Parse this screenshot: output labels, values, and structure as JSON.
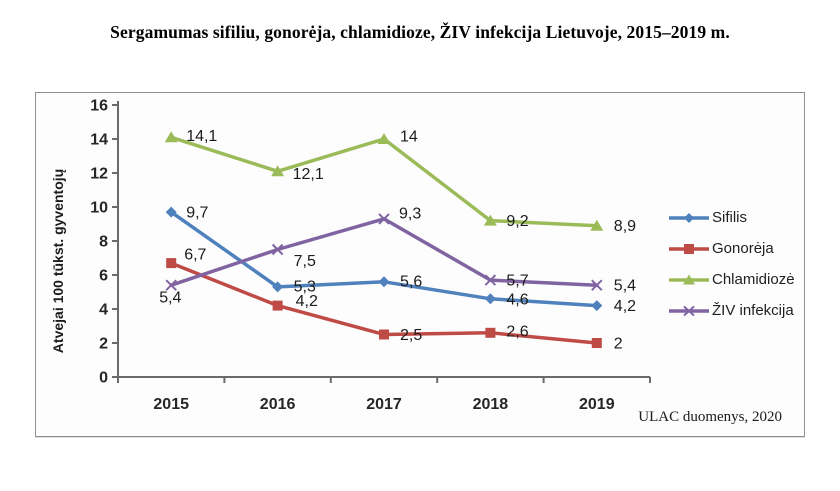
{
  "page": {
    "title": "Sergamumas sifiliu, gonorėja, chlamidioze, ŽIV infekcija Lietuvoje, 2015–2019 m."
  },
  "chart_data": {
    "type": "line",
    "title": "Sergamumas sifiliu, gonorėja, chlamidioze, ŽIV infekcija Lietuvoje, 2015–2019 m.",
    "xlabel": "",
    "ylabel": "Atvejai 100 tūkst. gyventojų",
    "categories": [
      "2015",
      "2016",
      "2017",
      "2018",
      "2019"
    ],
    "ylim": [
      0,
      16
    ],
    "yticks": [
      0,
      2,
      4,
      6,
      8,
      10,
      12,
      14,
      16
    ],
    "grid": false,
    "legend_position": "right",
    "decimal_separator": ",",
    "series": [
      {
        "name": "Sifilis",
        "color": "#4F81BD",
        "marker": "diamond",
        "values": [
          9.7,
          5.3,
          5.6,
          4.6,
          4.2
        ],
        "point_labels": [
          "9,7",
          "5,3",
          "5,6",
          "4,6",
          "4,2"
        ]
      },
      {
        "name": "Gonorėja",
        "color": "#BF4B47",
        "marker": "square",
        "values": [
          6.7,
          4.2,
          2.5,
          2.6,
          2
        ],
        "point_labels": [
          "6,7",
          "4,2",
          "2,5",
          "2,6",
          "2"
        ]
      },
      {
        "name": "Chlamidiozė",
        "color": "#9BBB59",
        "marker": "triangle",
        "values": [
          14.1,
          12.1,
          14,
          9.2,
          8.9
        ],
        "point_labels": [
          "14,1",
          "12,1",
          "14",
          "9,2",
          "8,9"
        ]
      },
      {
        "name": "ŽIV infekcija",
        "color": "#8064A2",
        "marker": "x",
        "values": [
          5.4,
          7.5,
          9.3,
          5.7,
          5.4
        ],
        "point_labels": [
          "5,4",
          "7,5",
          "9,3",
          "5,7",
          "5,4"
        ]
      }
    ],
    "axis_color": "#6a6a6a",
    "source_note": "ULAC duomenys, 2020"
  }
}
